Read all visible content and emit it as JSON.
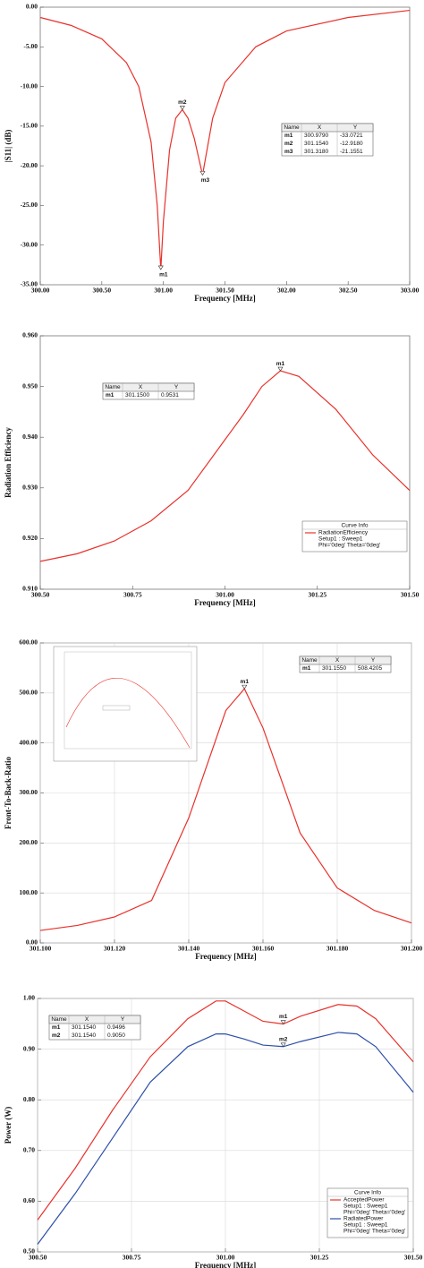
{
  "chart_data": [
    {
      "type": "line",
      "xlabel": "Frequency [MHz]",
      "ylabel": "|S11| (dB)",
      "grid": false,
      "x": [
        300,
        300.25,
        300.5,
        300.7,
        300.8,
        300.9,
        300.95,
        300.979,
        301.0,
        301.05,
        301.1,
        301.154,
        301.2,
        301.25,
        301.318,
        301.4,
        301.5,
        301.75,
        302,
        302.5,
        303
      ],
      "series": [
        {
          "color": "#e8312b",
          "values": [
            -1.3,
            -2.3,
            -4,
            -7,
            -10,
            -17,
            -25,
            -33.0721,
            -27,
            -18,
            -14,
            -12.918,
            -14,
            -16.5,
            -21.1551,
            -14,
            -9.5,
            -5,
            -3,
            -1.3,
            -0.4
          ]
        }
      ],
      "xlim": [
        300,
        303
      ],
      "xticks": [
        {
          "value": 300,
          "label": "300.00"
        },
        {
          "value": 300.5,
          "label": "300.50"
        },
        {
          "value": 301,
          "label": "301.00"
        },
        {
          "value": 301.5,
          "label": "301.50"
        },
        {
          "value": 302,
          "label": "302.00"
        },
        {
          "value": 302.5,
          "label": "302.50"
        },
        {
          "value": 303,
          "label": "303.00"
        }
      ],
      "ylim": [
        -35,
        0
      ],
      "yticks": [
        {
          "value": 0,
          "label": "0.00"
        },
        {
          "value": -5,
          "label": "-5.00"
        },
        {
          "value": -10,
          "label": "-10.00"
        },
        {
          "value": -15,
          "label": "-15.00"
        },
        {
          "value": -20,
          "label": "-20.00"
        },
        {
          "value": -25,
          "label": "-25.00"
        },
        {
          "value": -30,
          "label": "-30.00"
        },
        {
          "value": -35,
          "label": "-35.00"
        }
      ],
      "marker_columns": [
        "Name",
        "X",
        "Y"
      ],
      "markers": [
        {
          "name": "m1",
          "x": {
            "value": 300.979,
            "label": "300.9790"
          },
          "y": -33.0721
        },
        {
          "name": "m2",
          "x": {
            "value": 301.154,
            "label": "301.1540"
          },
          "y": {
            "value": -12.918,
            "label": "-12.9180"
          }
        },
        {
          "name": "m3",
          "x": {
            "value": 301.318,
            "label": "301.3180"
          },
          "y": -21.1551
        }
      ]
    },
    {
      "type": "line",
      "xlabel": "Frequency [MHz]",
      "ylabel": "Radiation Efficiency",
      "grid": false,
      "x": [
        300.5,
        300.6,
        300.7,
        300.8,
        300.9,
        301.0,
        301.05,
        301.1,
        301.15,
        301.2,
        301.3,
        301.4,
        301.5
      ],
      "series": [
        {
          "name": "RadiationEfficiency",
          "setup": "Setup1 : Sweep1",
          "context": "Phi='0deg' Theta='0deg'",
          "color": "#e8312b",
          "values": [
            0.9155,
            0.917,
            0.9195,
            0.9235,
            0.9295,
            0.9395,
            0.9445,
            0.95,
            0.9531,
            0.952,
            0.9455,
            0.9365,
            0.9295
          ]
        }
      ],
      "legend_title": "Curve Info",
      "legend": "lower right",
      "xlim": [
        300.5,
        301.5
      ],
      "xticks": [
        {
          "value": 300.5,
          "label": "300.50"
        },
        300.75,
        {
          "value": 301,
          "label": "301.00"
        },
        301.25,
        {
          "value": 301.5,
          "label": "301.50"
        }
      ],
      "ylim": [
        0.91,
        0.96
      ],
      "yticks": [
        {
          "value": 0.91,
          "label": "0.910"
        },
        {
          "value": 0.92,
          "label": "0.920"
        },
        {
          "value": 0.93,
          "label": "0.930"
        },
        {
          "value": 0.94,
          "label": "0.940"
        },
        {
          "value": 0.95,
          "label": "0.950"
        },
        {
          "value": 0.96,
          "label": "0.960"
        }
      ],
      "marker_columns": [
        "Name",
        "X",
        "Y"
      ],
      "markers": [
        {
          "name": "m1",
          "x": {
            "value": 301.15,
            "label": "301.1500"
          },
          "y": 0.9531
        }
      ]
    },
    {
      "type": "line",
      "xlabel": "Frequency [MHz]",
      "ylabel": "Front-To-Back-Ratio",
      "grid": true,
      "x": [
        301.1,
        301.11,
        301.12,
        301.13,
        301.14,
        301.15,
        301.155,
        301.16,
        301.17,
        301.18,
        301.19,
        301.2
      ],
      "series": [
        {
          "color": "#e8312b",
          "values": [
            25,
            35,
            52,
            85,
            250,
            465,
            508.4205,
            430,
            220,
            110,
            65,
            40
          ]
        }
      ],
      "xlim": [
        301.1,
        301.2
      ],
      "xticks": [
        {
          "value": 301.1,
          "label": "301.100"
        },
        {
          "value": 301.12,
          "label": "301.120"
        },
        {
          "value": 301.14,
          "label": "301.140"
        },
        {
          "value": 301.16,
          "label": "301.160"
        },
        {
          "value": 301.18,
          "label": "301.180"
        },
        {
          "value": 301.2,
          "label": "301.200"
        }
      ],
      "ylim": [
        0,
        600
      ],
      "yticks": [
        {
          "value": 0,
          "label": "0.00"
        },
        {
          "value": 100,
          "label": "100.00"
        },
        {
          "value": 200,
          "label": "200.00"
        },
        {
          "value": 300,
          "label": "300.00"
        },
        {
          "value": 400,
          "label": "400.00"
        },
        {
          "value": 500,
          "label": "500.00"
        },
        {
          "value": 600,
          "label": "600.00"
        }
      ],
      "marker_columns": [
        "Name",
        "X",
        "Y"
      ],
      "markers": [
        {
          "name": "m1",
          "x": {
            "value": 301.155,
            "label": "301.1550"
          },
          "y": 508.4205
        }
      ]
    },
    {
      "type": "line",
      "xlabel": "Frequency [MHz]",
      "ylabel": "Power (W)",
      "grid": true,
      "x": [
        300.5,
        300.6,
        300.7,
        300.8,
        300.9,
        300.975,
        301.0,
        301.05,
        301.1,
        301.154,
        301.2,
        301.3,
        301.35,
        301.4,
        301.5
      ],
      "series": [
        {
          "name": "AcceptedPower",
          "setup": "Setup1 : Sweep1",
          "context": "Phi='0deg' Theta='0deg'",
          "color": "#e8312b",
          "values": [
            0.563,
            0.665,
            0.78,
            0.885,
            0.96,
            0.995,
            0.995,
            0.975,
            0.955,
            0.9496,
            0.965,
            0.988,
            0.985,
            0.96,
            0.875
          ]
        },
        {
          "name": "RadiatedPower",
          "setup": "Setup1 : Sweep1",
          "context": "Phi='0deg' Theta='0deg'",
          "color": "#2b4fa8",
          "values": [
            0.515,
            0.615,
            0.725,
            0.835,
            0.905,
            0.93,
            0.93,
            0.92,
            0.908,
            0.905,
            0.915,
            0.933,
            0.93,
            0.905,
            0.815
          ]
        }
      ],
      "legend_title": "Curve Info",
      "legend": "lower right",
      "xlim": [
        300.5,
        301.5
      ],
      "xticks": [
        {
          "value": 300.5,
          "label": "300.50"
        },
        300.75,
        {
          "value": 301,
          "label": "301.00"
        },
        301.25,
        {
          "value": 301.5,
          "label": "301.50"
        }
      ],
      "ylim": [
        0.5,
        1
      ],
      "yticks": [
        {
          "value": 0.5,
          "label": "0.50"
        },
        {
          "value": 0.6,
          "label": "0.60"
        },
        {
          "value": 0.7,
          "label": "0.70"
        },
        {
          "value": 0.8,
          "label": "0.80"
        },
        {
          "value": 0.9,
          "label": "0.90"
        },
        {
          "value": 1,
          "label": "1.00"
        }
      ],
      "marker_columns": [
        "Name",
        "X",
        "Y"
      ],
      "markers": [
        {
          "name": "m1",
          "x": {
            "value": 301.154,
            "label": "301.1540"
          },
          "y": 0.9496
        },
        {
          "name": "m2",
          "x": {
            "value": 301.154,
            "label": "301.1540"
          },
          "y": {
            "value": 0.905,
            "label": "0.9050"
          }
        }
      ]
    }
  ]
}
